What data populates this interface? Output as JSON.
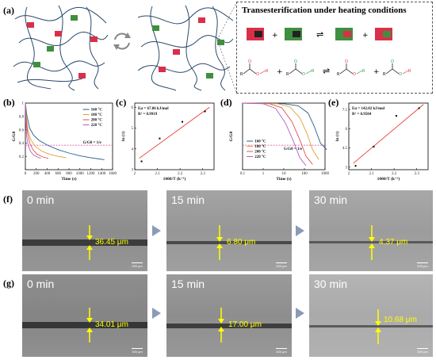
{
  "panels": {
    "a": "(a)",
    "b": "(b)",
    "c": "(c)",
    "d": "(d)",
    "e": "(e)",
    "f": "(f)",
    "g": "(g)"
  },
  "scheme": {
    "title": "Transesterification under heating conditions",
    "swap_symbol": "⇌",
    "plus": "+",
    "R_label": "R",
    "colors": {
      "red": "#d9304a",
      "green": "#3f8f3f",
      "chain": "#2a4a6a",
      "o_red": "#e53935",
      "o_green": "#2e9e3a"
    }
  },
  "chart_data": [
    {
      "type": "line",
      "panel": "b",
      "xlabel": "Time (s)",
      "ylabel": "G/G0",
      "xlim": [
        0,
        1600
      ],
      "ylim": [
        0,
        1.0
      ],
      "xticks": [
        0,
        200,
        400,
        600,
        800,
        1000,
        1200,
        1400,
        1600
      ],
      "yticks": [
        0.2,
        0.4,
        0.6,
        0.8,
        1.0
      ],
      "hline": {
        "y": 0.368,
        "label": "G/G0 = 1/e",
        "color": "#e0409a"
      },
      "series": [
        {
          "name": "160 °C",
          "color": "#1f5f8b",
          "x": [
            0,
            30,
            80,
            150,
            250,
            400,
            600,
            800,
            1000,
            1200,
            1450
          ],
          "y": [
            1.0,
            0.8,
            0.62,
            0.52,
            0.44,
            0.37,
            0.3,
            0.25,
            0.21,
            0.18,
            0.15
          ]
        },
        {
          "name": "180 °C",
          "color": "#e0a030",
          "x": [
            0,
            20,
            50,
            100,
            180,
            300,
            450,
            600,
            750
          ],
          "y": [
            1.0,
            0.78,
            0.58,
            0.45,
            0.35,
            0.28,
            0.23,
            0.2,
            0.18
          ]
        },
        {
          "name": "200 °C",
          "color": "#e05050",
          "x": [
            0,
            15,
            40,
            80,
            140,
            220,
            320,
            420
          ],
          "y": [
            1.0,
            0.75,
            0.55,
            0.4,
            0.3,
            0.23,
            0.19,
            0.17
          ]
        },
        {
          "name": "220 °C",
          "color": "#b060c0",
          "x": [
            0,
            10,
            25,
            50,
            90,
            150,
            220,
            280
          ],
          "y": [
            1.0,
            0.7,
            0.5,
            0.37,
            0.28,
            0.22,
            0.19,
            0.17
          ]
        }
      ]
    },
    {
      "type": "scatter",
      "panel": "c",
      "xlabel": "1000/T (k⁻¹)",
      "ylabel": "ln (τ)",
      "xlim": [
        2.0,
        2.35
      ],
      "ylim": [
        3.0,
        6.2
      ],
      "xticks": [
        2.0,
        2.1,
        2.2,
        2.3
      ],
      "yticks": [
        3,
        4,
        5,
        6
      ],
      "annotations": [
        "Eα = 67.86 kJ/mol",
        "R² = 0.9919"
      ],
      "fit": {
        "x": [
          2.02,
          2.33
        ],
        "y": [
          3.55,
          6.0
        ],
        "color": "#e53935"
      },
      "points": {
        "x": [
          2.03,
          2.11,
          2.21,
          2.31
        ],
        "y": [
          3.4,
          4.5,
          5.3,
          5.8
        ]
      }
    },
    {
      "type": "line",
      "panel": "d",
      "xlabel": "Time (s)",
      "ylabel": "G/G0",
      "xscale": "log",
      "xlim": [
        0.1,
        1000
      ],
      "ylim": [
        0,
        1.0
      ],
      "xticks": [
        0.1,
        1,
        10,
        100,
        1000
      ],
      "hline": {
        "y": 0.368,
        "label": "G/G0 = 1/e",
        "color": "#e0409a"
      },
      "series": [
        {
          "name": "160 °C",
          "color": "#1f5f8b",
          "x": [
            0.1,
            10,
            50,
            150,
            300,
            600,
            1200
          ],
          "y": [
            1.0,
            0.99,
            0.96,
            0.85,
            0.65,
            0.4,
            0.3
          ]
        },
        {
          "name": "180 °C",
          "color": "#e0a030",
          "x": [
            0.1,
            5,
            20,
            60,
            130,
            250,
            500
          ],
          "y": [
            1.0,
            0.99,
            0.94,
            0.78,
            0.55,
            0.3,
            0.15
          ]
        },
        {
          "name": "200 °C",
          "color": "#e05050",
          "x": [
            0.1,
            2,
            8,
            25,
            60,
            120,
            250
          ],
          "y": [
            1.0,
            0.99,
            0.93,
            0.72,
            0.45,
            0.2,
            0.08
          ]
        },
        {
          "name": "220 °C",
          "color": "#b060c0",
          "x": [
            0.1,
            1,
            4,
            12,
            30,
            60,
            120
          ],
          "y": [
            1.0,
            0.99,
            0.92,
            0.7,
            0.42,
            0.18,
            0.06
          ]
        }
      ]
    },
    {
      "type": "scatter",
      "panel": "e",
      "xlabel": "1000/T (k⁻¹)",
      "ylabel": "ln (τ)",
      "xlim": [
        2.0,
        2.35
      ],
      "ylim": [
        2.8,
        8.0
      ],
      "xticks": [
        2.0,
        2.1,
        2.2,
        2.3
      ],
      "yticks": [
        3.0,
        4.5,
        6.0,
        7.5
      ],
      "annotations": [
        "Eα = 142.02 kJ/mol",
        "R² = 0.9504"
      ],
      "fit": {
        "x": [
          2.02,
          2.33
        ],
        "y": [
          3.3,
          7.9
        ],
        "color": "#e53935"
      },
      "points": {
        "x": [
          2.03,
          2.11,
          2.21,
          2.31
        ],
        "y": [
          3.1,
          4.6,
          7.0,
          7.6
        ]
      }
    }
  ],
  "micrographs": {
    "f": [
      {
        "time": "0 min",
        "value": "36.45 μm",
        "scale": "200 μm"
      },
      {
        "time": "15 min",
        "value": "6.80 μm",
        "scale": "200 μm"
      },
      {
        "time": "30 min",
        "value": "4.37 μm",
        "scale": "200 μm"
      }
    ],
    "g": [
      {
        "time": "0 min",
        "value": "34.01 μm",
        "scale": "200 μm"
      },
      {
        "time": "15 min",
        "value": "17.00 μm",
        "scale": "200 μm"
      },
      {
        "time": "30 min",
        "value": "10.68 μm",
        "scale": "200 μm"
      }
    ]
  }
}
